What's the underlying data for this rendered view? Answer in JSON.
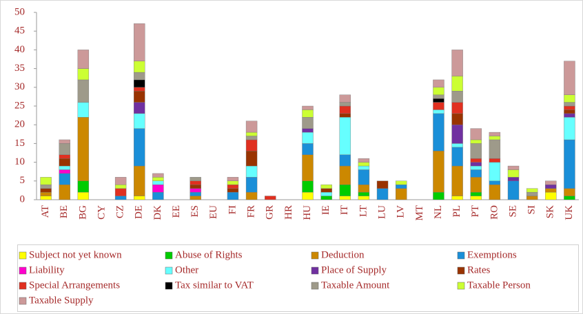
{
  "chart_data": {
    "type": "bar",
    "stacked": true,
    "categories": [
      "AT",
      "BE",
      "BG",
      "CY",
      "CZ",
      "DE",
      "DK",
      "EE",
      "ES",
      "EU",
      "FI",
      "FR",
      "GR",
      "HR",
      "HU",
      "IE",
      "IT",
      "LT",
      "LU",
      "LV",
      "MT",
      "NL",
      "PL",
      "PT",
      "RO",
      "SE",
      "SI",
      "SK",
      "UK"
    ],
    "ylim": [
      0,
      50
    ],
    "yticks": [
      0,
      5,
      10,
      15,
      20,
      25,
      30,
      35,
      40,
      45,
      50
    ],
    "grid": false,
    "legend": "bottom",
    "series": [
      {
        "name": "Subject not yet known",
        "color": "#ffff00",
        "values": [
          1,
          0,
          2,
          0,
          0,
          1,
          0,
          0,
          0,
          0,
          0,
          0,
          0,
          0,
          2,
          0,
          1,
          1,
          0,
          0,
          0,
          0,
          1,
          1,
          0,
          0,
          0,
          2,
          0
        ]
      },
      {
        "name": "Abuse of Rights",
        "color": "#00cc00",
        "values": [
          0,
          0,
          3,
          0,
          0,
          0,
          0,
          0,
          0,
          0,
          0,
          0,
          0,
          0,
          3,
          1,
          3,
          1,
          0,
          0,
          0,
          2,
          0,
          1,
          0,
          0,
          0,
          0,
          1
        ]
      },
      {
        "name": "Deduction",
        "color": "#cc8800",
        "values": [
          1,
          4,
          17,
          0,
          0,
          8,
          0,
          0,
          1,
          0,
          0,
          2,
          0,
          0,
          7,
          0,
          5,
          2,
          0,
          3,
          0,
          11,
          8,
          4,
          4,
          0,
          1,
          1,
          2
        ]
      },
      {
        "name": "Exemptions",
        "color": "#1a8fd8",
        "values": [
          0,
          3,
          0,
          0,
          1,
          10,
          2,
          0,
          1,
          0,
          2,
          4,
          0,
          0,
          3,
          0,
          3,
          4,
          3,
          1,
          0,
          10,
          5,
          2,
          1,
          5,
          0,
          0,
          13
        ]
      },
      {
        "name": "Liability",
        "color": "#ff00cc",
        "values": [
          0,
          1,
          0,
          0,
          0,
          0,
          2,
          0,
          1,
          0,
          0,
          0,
          0,
          0,
          0,
          0,
          0,
          0,
          0,
          0,
          0,
          0,
          0,
          0,
          0,
          0,
          0,
          0,
          0
        ]
      },
      {
        "name": "Other",
        "color": "#66ffff",
        "values": [
          0,
          1,
          4,
          0,
          0,
          4,
          1,
          0,
          0,
          0,
          0,
          3,
          0,
          0,
          3,
          1,
          10,
          1,
          0,
          0,
          0,
          1,
          1,
          1,
          5,
          0,
          0,
          0,
          6
        ]
      },
      {
        "name": "Place of Supply",
        "color": "#7030a0",
        "values": [
          0,
          0,
          0,
          0,
          0,
          3,
          0,
          0,
          0,
          0,
          0,
          0,
          0,
          0,
          1,
          0,
          0,
          0,
          0,
          0,
          0,
          0,
          5,
          1,
          0,
          1,
          0,
          1,
          1
        ]
      },
      {
        "name": "Rates",
        "color": "#993300",
        "values": [
          1,
          2,
          0,
          0,
          0,
          3,
          0,
          0,
          1,
          0,
          1,
          4,
          0,
          0,
          0,
          1,
          1,
          0,
          2,
          0,
          0,
          0,
          3,
          0,
          0,
          0,
          0,
          0,
          1
        ]
      },
      {
        "name": "Special Arrangements",
        "color": "#e03020",
        "values": [
          0,
          1,
          0,
          0,
          2,
          1,
          0,
          0,
          1,
          0,
          1,
          3,
          1,
          0,
          0,
          0,
          2,
          0,
          0,
          0,
          0,
          2,
          3,
          1,
          1,
          0,
          0,
          0,
          1
        ]
      },
      {
        "name": "Tax similar to VAT",
        "color": "#000000",
        "values": [
          0,
          0,
          0,
          0,
          0,
          2,
          0,
          0,
          0,
          0,
          0,
          0,
          0,
          0,
          0,
          0,
          0,
          0,
          0,
          0,
          0,
          1,
          0,
          0,
          0,
          0,
          0,
          0,
          0
        ]
      },
      {
        "name": "Taxable Amount",
        "color": "#9e9a8a",
        "values": [
          1,
          3,
          6,
          0,
          0,
          2,
          0,
          0,
          1,
          0,
          0,
          1,
          0,
          0,
          3,
          0,
          1,
          0,
          0,
          0,
          0,
          1,
          3,
          4,
          5,
          0,
          1,
          0,
          1
        ]
      },
      {
        "name": "Taxable Person",
        "color": "#ccff33",
        "values": [
          2,
          0,
          3,
          0,
          1,
          3,
          1,
          0,
          0,
          0,
          1,
          1,
          0,
          0,
          2,
          1,
          0,
          1,
          0,
          1,
          0,
          2,
          4,
          1,
          1,
          2,
          1,
          0,
          2
        ]
      },
      {
        "name": "Taxable Supply",
        "color": "#cc9999",
        "values": [
          0,
          1,
          5,
          0,
          2,
          10,
          1,
          0,
          0,
          0,
          1,
          3,
          0,
          0,
          1,
          0,
          2,
          1,
          0,
          0,
          0,
          2,
          7,
          3,
          1,
          1,
          0,
          1,
          9
        ]
      }
    ]
  }
}
